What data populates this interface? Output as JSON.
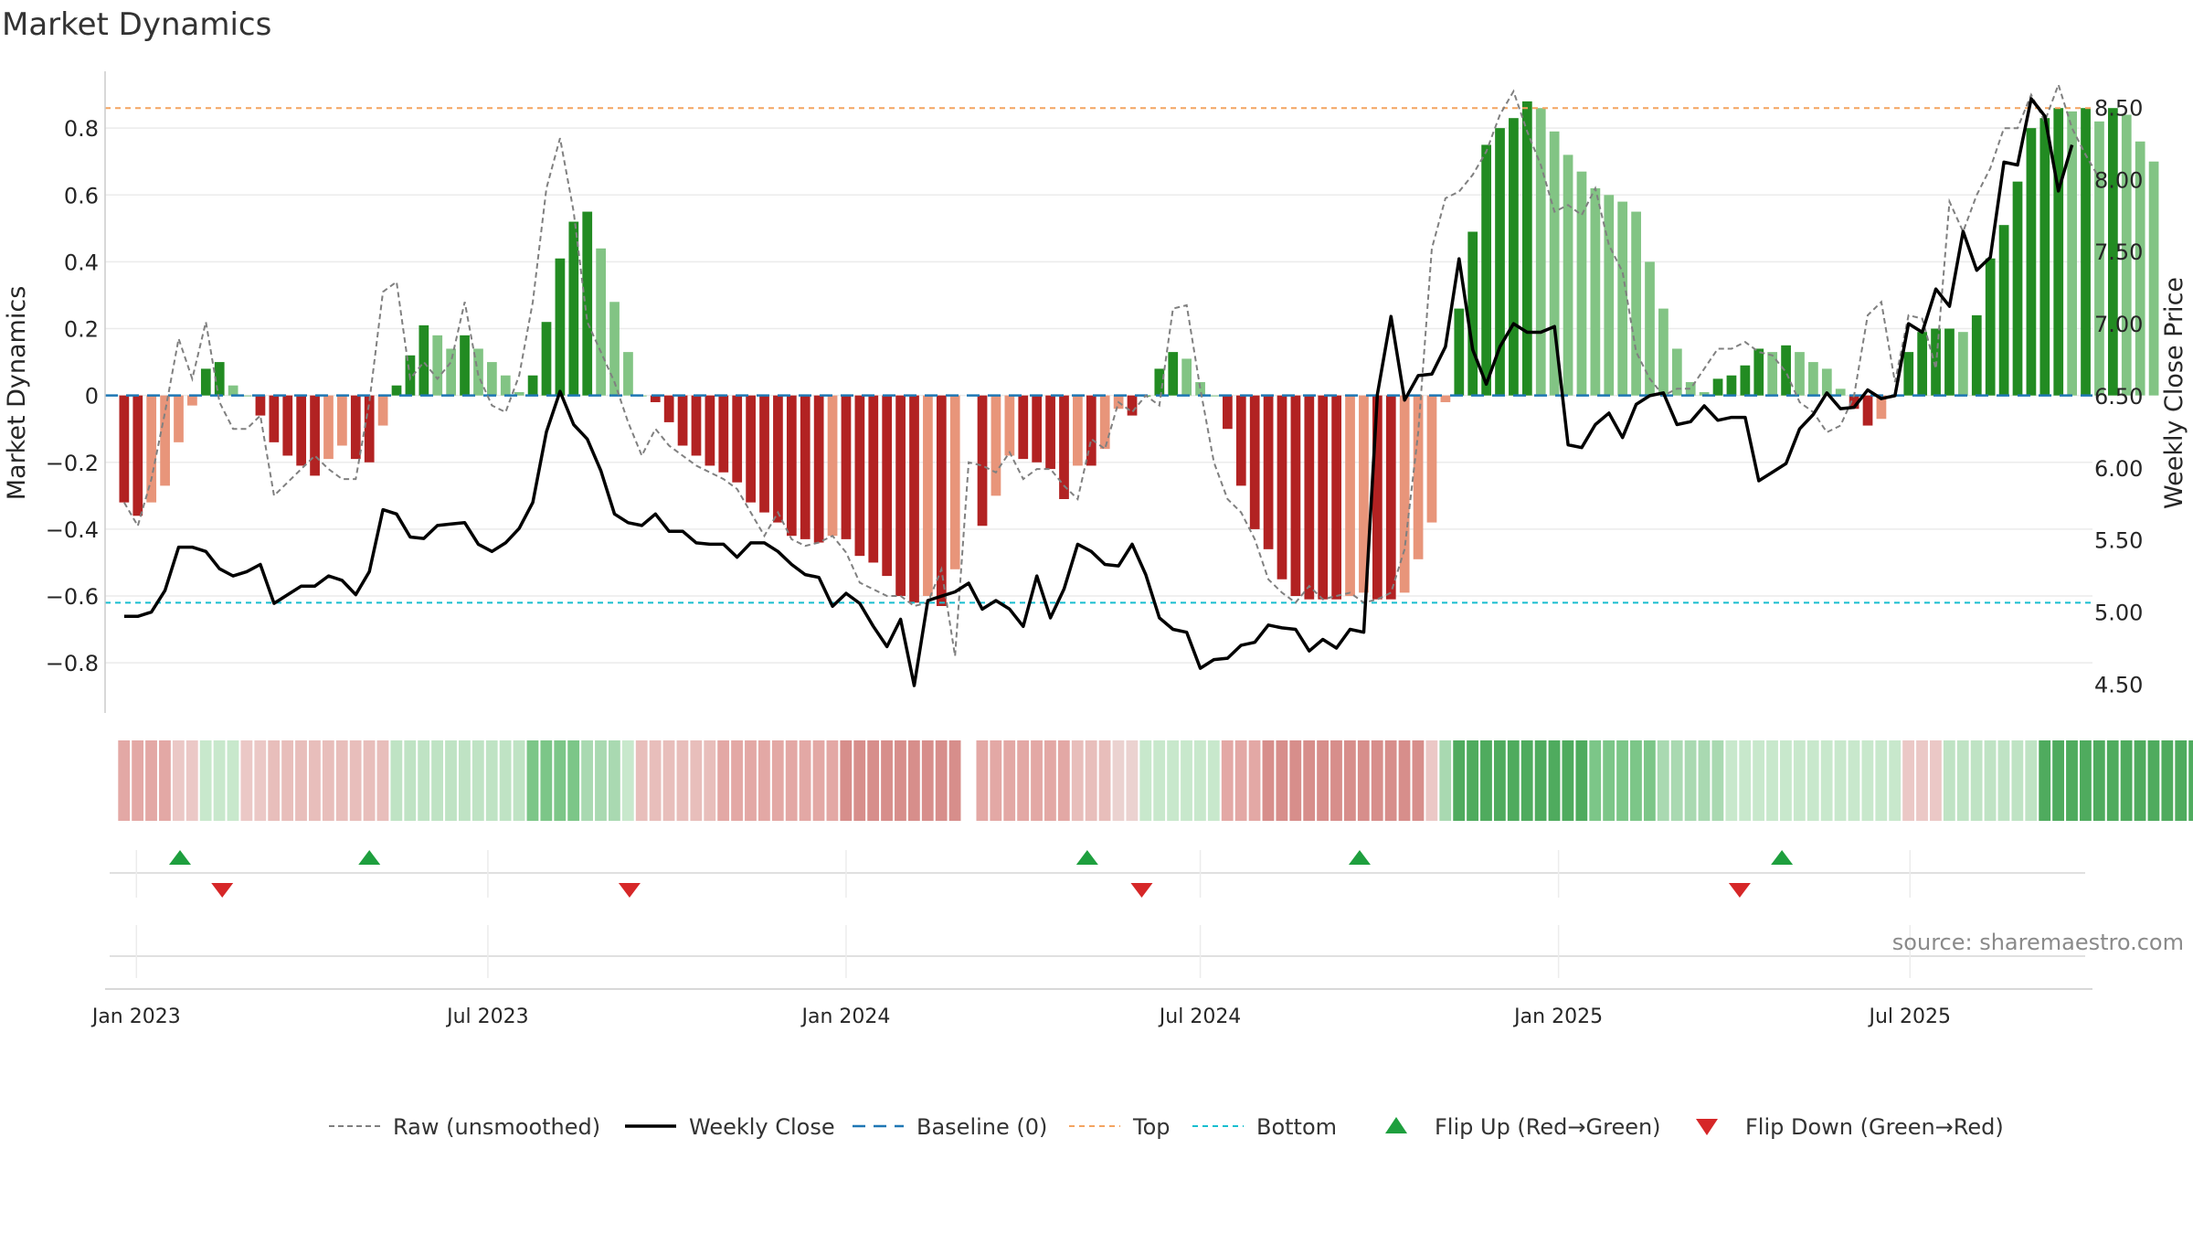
{
  "chart_data": {
    "type": "bar+line",
    "title": "Market Dynamics",
    "ylabel": "Market Dynamics",
    "y2label": "Weekly Close Price",
    "ylim": [
      -0.95,
      0.97
    ],
    "y2lim": [
      4.3,
      8.75
    ],
    "yticks": [
      -0.8,
      -0.6,
      -0.4,
      -0.2,
      0,
      0.2,
      0.4,
      0.6,
      0.8
    ],
    "ytick_labels": [
      "−0.8",
      "−0.6",
      "−0.4",
      "−0.2",
      "0",
      "0.2",
      "0.4",
      "0.6",
      "0.8"
    ],
    "y2ticks": [
      4.5,
      5.0,
      5.5,
      6.0,
      6.5,
      7.0,
      7.5,
      8.0,
      8.5
    ],
    "y2tick_labels": [
      "4.50",
      "5.00",
      "5.50",
      "6.00",
      "6.50",
      "7.00",
      "7.50",
      "8.00",
      "8.50"
    ],
    "x_start_week": -1.4,
    "x_end_week": 144.5,
    "xticks": [
      {
        "label": "Jan 2023",
        "week": 0.9
      },
      {
        "label": "Jul 2023",
        "week": 26.7
      },
      {
        "label": "Jan 2024",
        "week": 53.0
      },
      {
        "label": "Jul 2024",
        "week": 79.0
      },
      {
        "label": "Jan 2025",
        "week": 105.3
      },
      {
        "label": "Jul 2025",
        "week": 131.1
      }
    ],
    "top_line": 0.86,
    "bottom_line": -0.62,
    "baseline": 0,
    "smoothed": [
      -0.32,
      -0.36,
      -0.32,
      -0.27,
      -0.14,
      -0.03,
      0.08,
      0.1,
      0.03,
      0,
      -0.06,
      -0.14,
      -0.18,
      -0.21,
      -0.24,
      -0.19,
      -0.15,
      -0.19,
      -0.2,
      -0.09,
      0.03,
      0.12,
      0.21,
      0.18,
      0.14,
      0.18,
      0.14,
      0.1,
      0.06,
      0.01,
      0.06,
      0.22,
      0.41,
      0.52,
      0.55,
      0.44,
      0.28,
      0.13,
      0,
      -0.02,
      -0.08,
      -0.15,
      -0.18,
      -0.21,
      -0.23,
      -0.26,
      -0.32,
      -0.35,
      -0.38,
      -0.42,
      -0.43,
      -0.44,
      -0.42,
      -0.43,
      -0.48,
      -0.5,
      -0.54,
      -0.6,
      -0.62,
      -0.6,
      -0.63,
      -0.52,
      null,
      -0.39,
      -0.3,
      -0.18,
      -0.19,
      -0.2,
      -0.22,
      -0.31,
      -0.21,
      -0.21,
      -0.16,
      -0.04,
      -0.06,
      0,
      0.08,
      0.13,
      0.11,
      0.04,
      0,
      -0.1,
      -0.27,
      -0.4,
      -0.46,
      -0.55,
      -0.6,
      -0.61,
      -0.61,
      -0.61,
      -0.6,
      -0.59,
      -0.61,
      -0.61,
      -0.59,
      -0.49,
      -0.38,
      -0.02,
      0.26,
      0.49,
      0.75,
      0.8,
      0.83,
      0.88,
      0.86,
      0.79,
      0.72,
      0.67,
      0.62,
      0.6,
      0.58,
      0.55,
      0.4,
      0.26,
      0.14,
      0.04,
      0.01,
      0.05,
      0.06,
      0.09,
      0.14,
      0.13,
      0.15,
      0.13,
      0.1,
      0.08,
      0.02,
      -0.04,
      -0.09,
      -0.07,
      0,
      0.13,
      0.19,
      0.2,
      0.2,
      0.19,
      0.24,
      0.41,
      0.51,
      0.64,
      0.8,
      0.83,
      0.86,
      0.85,
      0.86,
      0.82,
      0.86,
      0.84,
      0.76,
      0.7
    ],
    "raw": [
      -0.32,
      -0.39,
      -0.25,
      -0.05,
      0.17,
      0.05,
      0.22,
      -0.02,
      -0.1,
      -0.1,
      -0.06,
      -0.3,
      -0.26,
      -0.22,
      -0.18,
      -0.22,
      -0.25,
      -0.25,
      -0.02,
      0.31,
      0.34,
      0.05,
      0.1,
      0.05,
      0.1,
      0.28,
      0.06,
      -0.03,
      -0.05,
      0.06,
      0.28,
      0.62,
      0.77,
      0.55,
      0.22,
      0.13,
      0.04,
      -0.08,
      -0.18,
      -0.1,
      -0.15,
      -0.18,
      -0.21,
      -0.23,
      -0.25,
      -0.28,
      -0.35,
      -0.42,
      -0.35,
      -0.43,
      -0.45,
      -0.44,
      -0.42,
      -0.47,
      -0.56,
      -0.58,
      -0.6,
      -0.6,
      -0.63,
      -0.62,
      -0.52,
      -0.78,
      -0.2,
      -0.21,
      -0.23,
      -0.17,
      -0.25,
      -0.22,
      -0.22,
      -0.27,
      -0.31,
      -0.13,
      -0.16,
      -0.02,
      -0.05,
      0,
      -0.03,
      0.26,
      0.27,
      0.02,
      -0.2,
      -0.31,
      -0.35,
      -0.43,
      -0.55,
      -0.59,
      -0.62,
      -0.57,
      -0.61,
      -0.6,
      -0.59,
      -0.62,
      -0.61,
      -0.59,
      -0.46,
      -0.11,
      0.44,
      0.59,
      0.61,
      0.66,
      0.73,
      0.84,
      0.91,
      0.79,
      0.69,
      0.55,
      0.57,
      0.54,
      0.62,
      0.45,
      0.37,
      0.13,
      0.05,
      0,
      0.02,
      0.02,
      0.08,
      0.14,
      0.14,
      0.16,
      0.13,
      0.12,
      0.07,
      -0.02,
      -0.05,
      -0.11,
      -0.09,
      0,
      0.24,
      0.28,
      0.04,
      0.24,
      0.23,
      0.08,
      0.58,
      0.49,
      0.6,
      0.68,
      0.8,
      0.8,
      0.9,
      0.82,
      0.93,
      0.8,
      0.72,
      0.65
    ],
    "close": [
      4.97,
      4.97,
      5.0,
      5.15,
      5.45,
      5.45,
      5.42,
      5.3,
      5.25,
      5.28,
      5.33,
      5.06,
      5.12,
      5.18,
      5.18,
      5.25,
      5.22,
      5.12,
      5.28,
      5.71,
      5.68,
      5.52,
      5.51,
      5.6,
      5.61,
      5.62,
      5.47,
      5.42,
      5.48,
      5.58,
      5.76,
      6.25,
      6.53,
      6.3,
      6.2,
      5.98,
      5.68,
      5.62,
      5.6,
      5.68,
      5.56,
      5.56,
      5.48,
      5.47,
      5.47,
      5.38,
      5.48,
      5.48,
      5.42,
      5.33,
      5.26,
      5.24,
      5.04,
      5.13,
      5.06,
      4.9,
      4.76,
      4.95,
      4.49,
      5.08,
      5.11,
      5.14,
      5.2,
      5.02,
      5.08,
      5.02,
      4.9,
      5.25,
      4.96,
      5.16,
      5.47,
      5.42,
      5.33,
      5.32,
      5.47,
      5.26,
      4.96,
      4.88,
      4.86,
      4.61,
      4.67,
      4.68,
      4.77,
      4.79,
      4.91,
      4.89,
      4.88,
      4.73,
      4.81,
      4.75,
      4.88,
      4.86,
      6.51,
      7.05,
      6.47,
      6.64,
      6.65,
      6.84,
      7.45,
      6.82,
      6.58,
      6.84,
      7.0,
      6.94,
      6.94,
      6.98,
      6.16,
      6.14,
      6.3,
      6.38,
      6.21,
      6.44,
      6.5,
      6.52,
      6.3,
      6.32,
      6.43,
      6.33,
      6.35,
      6.35,
      5.91,
      5.97,
      6.03,
      6.27,
      6.37,
      6.52,
      6.41,
      6.42,
      6.54,
      6.48,
      6.5,
      7.0,
      6.94,
      7.24,
      7.12,
      7.64,
      7.37,
      7.46,
      8.12,
      8.1,
      8.56,
      8.44,
      7.92,
      8.24
    ],
    "regime_strip": [
      "#e3a8a5",
      "#e3a8a5",
      "#e3a8a5",
      "#e3a8a5",
      "#ebc8c6",
      "#ebc8c6",
      "#c8e8cc",
      "#c8e8cc",
      "#c8e8cc",
      "#ebc8c6",
      "#ebc8c6",
      "#e8bebb",
      "#e8bebb",
      "#e8bebb",
      "#e8bebb",
      "#e8bebb",
      "#e8bebb",
      "#e8bebb",
      "#e8bebb",
      "#e8bebb",
      "#bfe3c4",
      "#bfe3c4",
      "#bfe3c4",
      "#bfe3c4",
      "#bfe3c4",
      "#bfe3c4",
      "#bfe3c4",
      "#bfe3c4",
      "#bfe3c4",
      "#bfe3c4",
      "#7cc688",
      "#7cc688",
      "#7cc688",
      "#7cc688",
      "#a9d9b1",
      "#a9d9b1",
      "#a9d9b1",
      "#c8e8cc",
      "#e8bebb",
      "#e8bebb",
      "#e8bebb",
      "#e8bebb",
      "#e8bebb",
      "#e8bebb",
      "#e3a8a5",
      "#e3a8a5",
      "#e3a8a5",
      "#e3a8a5",
      "#e3a8a5",
      "#e3a8a5",
      "#e3a8a5",
      "#e3a8a5",
      "#e3a8a5",
      "#d78e8b",
      "#d78e8b",
      "#d78e8b",
      "#d78e8b",
      "#d78e8b",
      "#d78e8b",
      "#d78e8b",
      "#d78e8b",
      "#d78e8b",
      null,
      "#e3a8a5",
      "#e3a8a5",
      "#e3a8a5",
      "#e3a8a5",
      "#e3a8a5",
      "#e3a8a5",
      "#e3a8a5",
      "#e8bebb",
      "#e8bebb",
      "#e8bebb",
      "#ebd2d0",
      "#ebd2d0",
      "#c8e8cc",
      "#c8e8cc",
      "#c8e8cc",
      "#c8e8cc",
      "#c8e8cc",
      "#c8e8cc",
      "#e3a8a5",
      "#e3a8a5",
      "#e3a8a5",
      "#d78e8b",
      "#d78e8b",
      "#d78e8b",
      "#d78e8b",
      "#d78e8b",
      "#d78e8b",
      "#d78e8b",
      "#d78e8b",
      "#d78e8b",
      "#d78e8b",
      "#d78e8b",
      "#d78e8b",
      "#ebc8c6",
      "#a9d9b1",
      "#4fab5e",
      "#4fab5e",
      "#4fab5e",
      "#4fab5e",
      "#4fab5e",
      "#4fab5e",
      "#4fab5e",
      "#4fab5e",
      "#4fab5e",
      "#4fab5e",
      "#7cc688",
      "#7cc688",
      "#7cc688",
      "#7cc688",
      "#7cc688",
      "#a9d9b1",
      "#a9d9b1",
      "#a9d9b1",
      "#a9d9b1",
      "#a9d9b1",
      "#c8e8cc",
      "#c8e8cc",
      "#c8e8cc",
      "#c8e8cc",
      "#c8e8cc",
      "#c8e8cc",
      "#c8e8cc",
      "#c8e8cc",
      "#c8e8cc",
      "#c8e8cc",
      "#c8e8cc",
      "#c8e8cc",
      "#c8e8cc",
      "#ebc8c6",
      "#ebc8c6",
      "#ebc8c6",
      "#bfe3c4",
      "#bfe3c4",
      "#bfe3c4",
      "#bfe3c4",
      "#bfe3c4",
      "#bfe3c4",
      "#bfe3c4",
      "#4fab5e",
      "#4fab5e",
      "#4fab5e",
      "#4fab5e",
      "#4fab5e",
      "#4fab5e",
      "#4fab5e",
      "#4fab5e",
      "#4fab5e",
      "#4fab5e",
      "#4fab5e",
      "#4fab5e",
      "#4fab5e"
    ],
    "flip_up_weeks": [
      4.1,
      18.0,
      70.7,
      90.7,
      121.7
    ],
    "flip_down_weeks": [
      7.2,
      37.1,
      74.7,
      118.6
    ],
    "colors": {
      "pos_strong": "#228b22",
      "pos_weak": "#82c484",
      "neg_strong": "#b22222",
      "neg_weak": "#e8957a",
      "close": "#000000",
      "raw": "#808080",
      "baseline": "#1f77b4",
      "top": "#f4a460",
      "bottom": "#17becf",
      "flip_up": "#1e9f3e",
      "flip_down": "#d62728"
    },
    "legend": [
      "Raw (unsmoothed)",
      "Weekly Close",
      "Baseline (0)",
      "Top",
      "Bottom",
      "Flip Up (Red→Green)",
      "Flip Down (Green→Red)"
    ],
    "source": "source: sharemaestro.com"
  }
}
